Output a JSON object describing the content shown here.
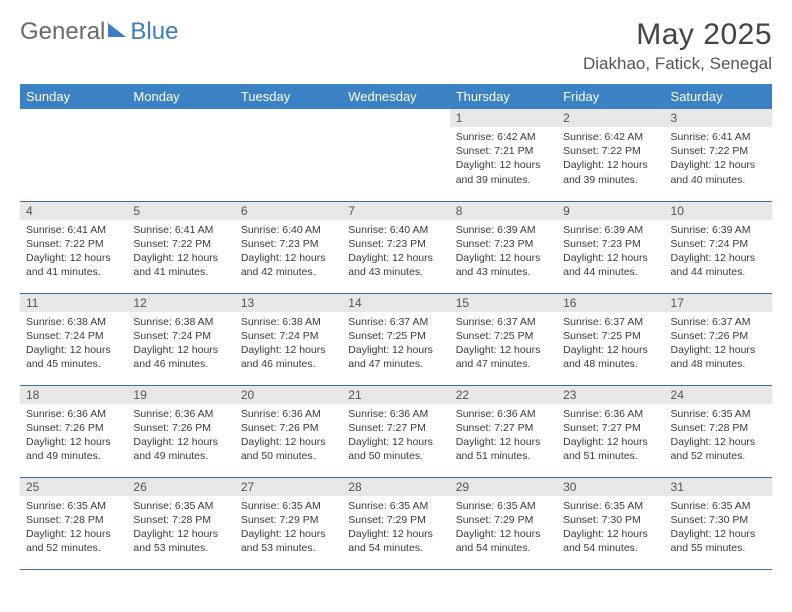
{
  "brand": {
    "part1": "General",
    "part2": "Blue"
  },
  "title": {
    "month": "May 2025",
    "location": "Diakhao, Fatick, Senegal"
  },
  "colors": {
    "header_bg": "#3a82c4",
    "header_text": "#ffffff",
    "daynum_bg": "#e7e7e7",
    "cell_border": "#3a6fa0",
    "brand_blue": "#3a7fc2"
  },
  "weekdays": [
    "Sunday",
    "Monday",
    "Tuesday",
    "Wednesday",
    "Thursday",
    "Friday",
    "Saturday"
  ],
  "grid": [
    [
      null,
      null,
      null,
      null,
      {
        "n": "1",
        "sr": "6:42 AM",
        "ss": "7:21 PM",
        "dl": "12 hours and 39 minutes."
      },
      {
        "n": "2",
        "sr": "6:42 AM",
        "ss": "7:22 PM",
        "dl": "12 hours and 39 minutes."
      },
      {
        "n": "3",
        "sr": "6:41 AM",
        "ss": "7:22 PM",
        "dl": "12 hours and 40 minutes."
      }
    ],
    [
      {
        "n": "4",
        "sr": "6:41 AM",
        "ss": "7:22 PM",
        "dl": "12 hours and 41 minutes."
      },
      {
        "n": "5",
        "sr": "6:41 AM",
        "ss": "7:22 PM",
        "dl": "12 hours and 41 minutes."
      },
      {
        "n": "6",
        "sr": "6:40 AM",
        "ss": "7:23 PM",
        "dl": "12 hours and 42 minutes."
      },
      {
        "n": "7",
        "sr": "6:40 AM",
        "ss": "7:23 PM",
        "dl": "12 hours and 43 minutes."
      },
      {
        "n": "8",
        "sr": "6:39 AM",
        "ss": "7:23 PM",
        "dl": "12 hours and 43 minutes."
      },
      {
        "n": "9",
        "sr": "6:39 AM",
        "ss": "7:23 PM",
        "dl": "12 hours and 44 minutes."
      },
      {
        "n": "10",
        "sr": "6:39 AM",
        "ss": "7:24 PM",
        "dl": "12 hours and 44 minutes."
      }
    ],
    [
      {
        "n": "11",
        "sr": "6:38 AM",
        "ss": "7:24 PM",
        "dl": "12 hours and 45 minutes."
      },
      {
        "n": "12",
        "sr": "6:38 AM",
        "ss": "7:24 PM",
        "dl": "12 hours and 46 minutes."
      },
      {
        "n": "13",
        "sr": "6:38 AM",
        "ss": "7:24 PM",
        "dl": "12 hours and 46 minutes."
      },
      {
        "n": "14",
        "sr": "6:37 AM",
        "ss": "7:25 PM",
        "dl": "12 hours and 47 minutes."
      },
      {
        "n": "15",
        "sr": "6:37 AM",
        "ss": "7:25 PM",
        "dl": "12 hours and 47 minutes."
      },
      {
        "n": "16",
        "sr": "6:37 AM",
        "ss": "7:25 PM",
        "dl": "12 hours and 48 minutes."
      },
      {
        "n": "17",
        "sr": "6:37 AM",
        "ss": "7:26 PM",
        "dl": "12 hours and 48 minutes."
      }
    ],
    [
      {
        "n": "18",
        "sr": "6:36 AM",
        "ss": "7:26 PM",
        "dl": "12 hours and 49 minutes."
      },
      {
        "n": "19",
        "sr": "6:36 AM",
        "ss": "7:26 PM",
        "dl": "12 hours and 49 minutes."
      },
      {
        "n": "20",
        "sr": "6:36 AM",
        "ss": "7:26 PM",
        "dl": "12 hours and 50 minutes."
      },
      {
        "n": "21",
        "sr": "6:36 AM",
        "ss": "7:27 PM",
        "dl": "12 hours and 50 minutes."
      },
      {
        "n": "22",
        "sr": "6:36 AM",
        "ss": "7:27 PM",
        "dl": "12 hours and 51 minutes."
      },
      {
        "n": "23",
        "sr": "6:36 AM",
        "ss": "7:27 PM",
        "dl": "12 hours and 51 minutes."
      },
      {
        "n": "24",
        "sr": "6:35 AM",
        "ss": "7:28 PM",
        "dl": "12 hours and 52 minutes."
      }
    ],
    [
      {
        "n": "25",
        "sr": "6:35 AM",
        "ss": "7:28 PM",
        "dl": "12 hours and 52 minutes."
      },
      {
        "n": "26",
        "sr": "6:35 AM",
        "ss": "7:28 PM",
        "dl": "12 hours and 53 minutes."
      },
      {
        "n": "27",
        "sr": "6:35 AM",
        "ss": "7:29 PM",
        "dl": "12 hours and 53 minutes."
      },
      {
        "n": "28",
        "sr": "6:35 AM",
        "ss": "7:29 PM",
        "dl": "12 hours and 54 minutes."
      },
      {
        "n": "29",
        "sr": "6:35 AM",
        "ss": "7:29 PM",
        "dl": "12 hours and 54 minutes."
      },
      {
        "n": "30",
        "sr": "6:35 AM",
        "ss": "7:30 PM",
        "dl": "12 hours and 54 minutes."
      },
      {
        "n": "31",
        "sr": "6:35 AM",
        "ss": "7:30 PM",
        "dl": "12 hours and 55 minutes."
      }
    ]
  ],
  "labels": {
    "sunrise": "Sunrise:",
    "sunset": "Sunset:",
    "daylight": "Daylight:"
  }
}
